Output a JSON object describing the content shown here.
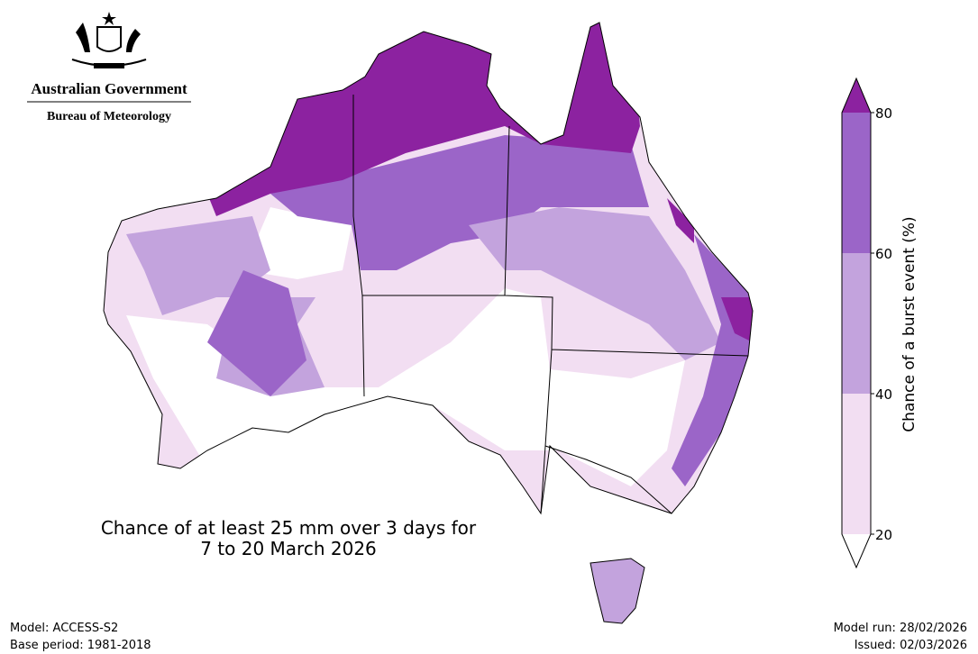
{
  "logo": {
    "line1": "Australian Government",
    "line2": "Bureau of Meteorology"
  },
  "title": [
    "Chance of at least 25 mm over 3 days for",
    "7 to 20 March 2026"
  ],
  "colorbar": {
    "label": "Chance of a burst event (%)",
    "ticks": [
      20,
      40,
      60,
      80
    ],
    "colors": [
      "#ffffff",
      "#f2def2",
      "#c3a3dd",
      "#9b65c8",
      "#8c22a0"
    ]
  },
  "footer": {
    "left": [
      "Model: ACCESS-S2",
      "Base period: 1981-2018"
    ],
    "right": [
      "Model run: 28/02/2026",
      "Issued: 02/03/2026"
    ]
  }
}
